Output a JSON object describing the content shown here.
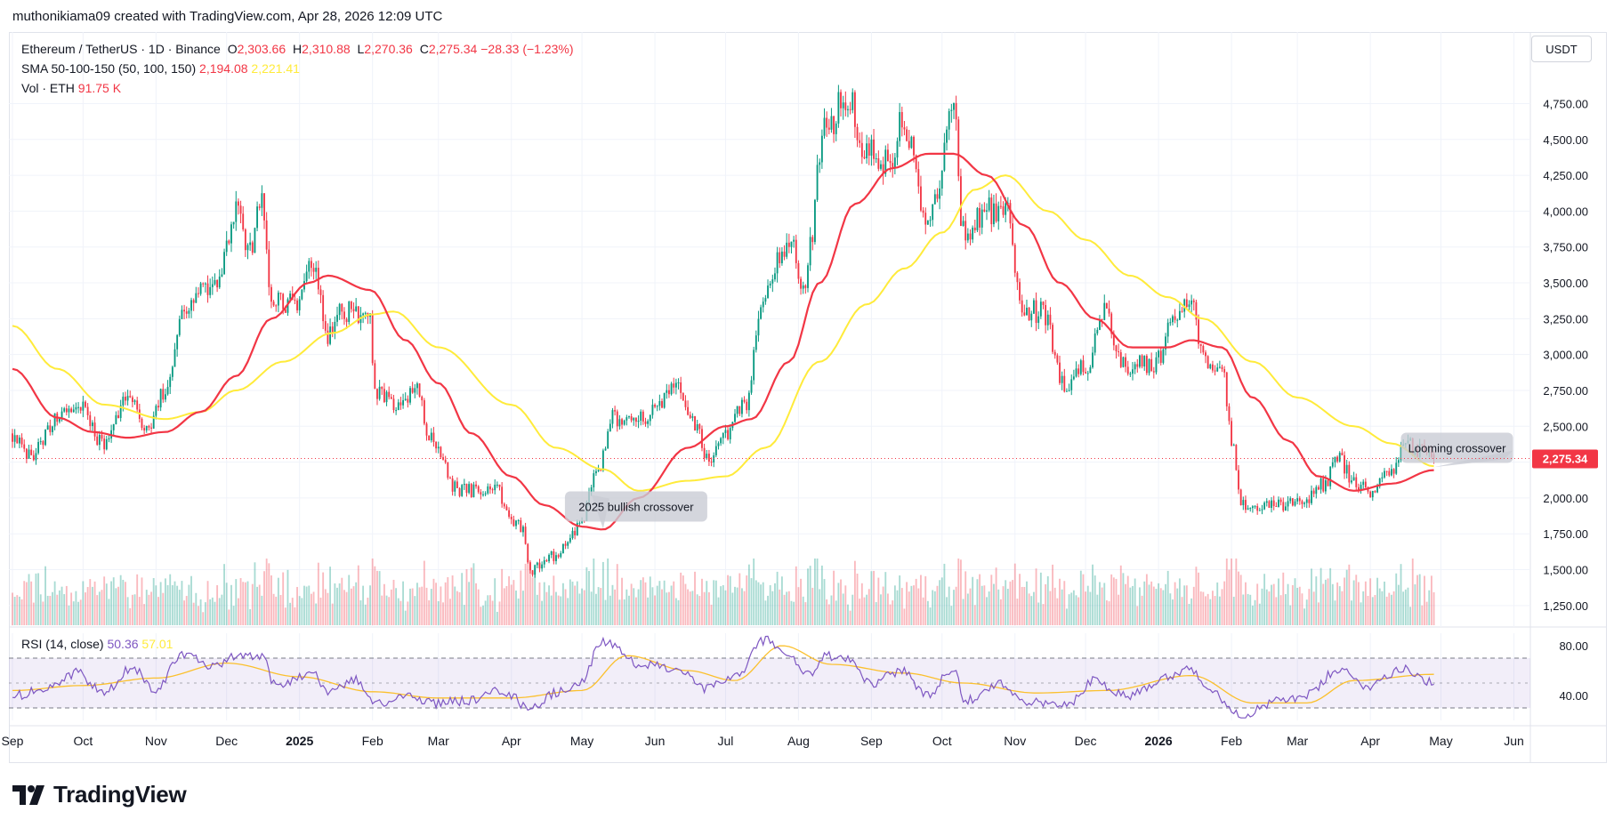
{
  "attribution": "muthonikiama09 created with TradingView.com, Apr 28, 2026 12:09 UTC",
  "legend": {
    "symbol": "Ethereum / TetherUS · 1D · Binance",
    "open_key": "O",
    "open": "2,303.66",
    "high_key": "H",
    "high": "2,310.88",
    "low_key": "L",
    "low": "2,270.36",
    "close_key": "C",
    "close": "2,275.34",
    "change": "−28.33 (−1.23%)",
    "sma_label": "SMA 50-100-150 (50, 100, 150)",
    "sma_fast": "2,194.08",
    "sma_slow": "2,221.41",
    "vol_label": "Vol · ETH",
    "vol_value": "91.75 K"
  },
  "rsi_legend": {
    "label": "RSI (14, close)",
    "rsi": "50.36",
    "ma": "57.01"
  },
  "currency_button": "USDT",
  "brand": "TradingView",
  "price_badge": "2,275.34",
  "colors": {
    "up": "#089981",
    "down": "#f23645",
    "sma_fast": "#f23645",
    "sma_slow": "#ffeb3b",
    "rsi": "#7e57c2",
    "rsi_ma": "#fbc02d",
    "badge": "#f23645"
  },
  "chart_data": {
    "type": "candlestick",
    "price_axis": {
      "ylim": [
        1100,
        5100
      ],
      "ticks": [
        1250,
        1500,
        1750,
        2000,
        2250,
        2500,
        2750,
        3000,
        3250,
        3500,
        3750,
        4000,
        4250,
        4500,
        4750
      ],
      "tick_labels": [
        "1,250.00",
        "1,500.00",
        "1,750.00",
        "2,000.00",
        "2,250.00",
        "2,500.00",
        "2,750.00",
        "3,000.00",
        "3,250.00",
        "3,500.00",
        "3,750.00",
        "4,000.00",
        "4,250.00",
        "4,500.00",
        "4,750.00"
      ]
    },
    "time_axis": {
      "start": "2024-09-01",
      "end": "2026-06-08",
      "labels": [
        {
          "date": "2024-09-01",
          "text": "Sep",
          "bold": false
        },
        {
          "date": "2024-10-01",
          "text": "Oct",
          "bold": false
        },
        {
          "date": "2024-11-01",
          "text": "Nov",
          "bold": false
        },
        {
          "date": "2024-12-01",
          "text": "Dec",
          "bold": false
        },
        {
          "date": "2025-01-01",
          "text": "2025",
          "bold": true
        },
        {
          "date": "2025-02-01",
          "text": "Feb",
          "bold": false
        },
        {
          "date": "2025-03-01",
          "text": "Mar",
          "bold": false
        },
        {
          "date": "2025-04-01",
          "text": "Apr",
          "bold": false
        },
        {
          "date": "2025-05-01",
          "text": "May",
          "bold": false
        },
        {
          "date": "2025-06-01",
          "text": "Jun",
          "bold": false
        },
        {
          "date": "2025-07-01",
          "text": "Jul",
          "bold": false
        },
        {
          "date": "2025-08-01",
          "text": "Aug",
          "bold": false
        },
        {
          "date": "2025-09-01",
          "text": "Sep",
          "bold": false
        },
        {
          "date": "2025-10-01",
          "text": "Oct",
          "bold": false
        },
        {
          "date": "2025-11-01",
          "text": "Nov",
          "bold": false
        },
        {
          "date": "2025-12-01",
          "text": "Dec",
          "bold": false
        },
        {
          "date": "2026-01-01",
          "text": "2026",
          "bold": true
        },
        {
          "date": "2026-02-01",
          "text": "Feb",
          "bold": false
        },
        {
          "date": "2026-03-01",
          "text": "Mar",
          "bold": false
        },
        {
          "date": "2026-04-01",
          "text": "Apr",
          "bold": false
        },
        {
          "date": "2026-05-01",
          "text": "May",
          "bold": false
        },
        {
          "date": "2026-06-01",
          "text": "Jun",
          "bold": false
        }
      ]
    },
    "close_anchors": [
      [
        "2024-09-01",
        2450
      ],
      [
        "2024-09-08",
        2300
      ],
      [
        "2024-09-20",
        2550
      ],
      [
        "2024-09-29",
        2650
      ],
      [
        "2024-10-10",
        2380
      ],
      [
        "2024-10-20",
        2700
      ],
      [
        "2024-10-28",
        2500
      ],
      [
        "2024-11-06",
        2780
      ],
      [
        "2024-11-12",
        3300
      ],
      [
        "2024-11-25",
        3500
      ],
      [
        "2024-12-06",
        4000
      ],
      [
        "2024-12-10",
        3700
      ],
      [
        "2024-12-16",
        4050
      ],
      [
        "2024-12-20",
        3350
      ],
      [
        "2024-12-31",
        3350
      ],
      [
        "2025-01-06",
        3650
      ],
      [
        "2025-01-13",
        3150
      ],
      [
        "2025-01-20",
        3300
      ],
      [
        "2025-01-31",
        3250
      ],
      [
        "2025-02-02",
        2750
      ],
      [
        "2025-02-10",
        2650
      ],
      [
        "2025-02-20",
        2750
      ],
      [
        "2025-02-25",
        2400
      ],
      [
        "2025-03-10",
        2050
      ],
      [
        "2025-03-25",
        2050
      ],
      [
        "2025-04-05",
        1800
      ],
      [
        "2025-04-09",
        1500
      ],
      [
        "2025-04-20",
        1600
      ],
      [
        "2025-04-30",
        1800
      ],
      [
        "2025-05-08",
        2200
      ],
      [
        "2025-05-14",
        2550
      ],
      [
        "2025-05-25",
        2550
      ],
      [
        "2025-06-10",
        2750
      ],
      [
        "2025-06-20",
        2450
      ],
      [
        "2025-06-22",
        2250
      ],
      [
        "2025-07-01",
        2450
      ],
      [
        "2025-07-09",
        2650
      ],
      [
        "2025-07-17",
        3400
      ],
      [
        "2025-07-28",
        3800
      ],
      [
        "2025-08-03",
        3500
      ],
      [
        "2025-08-13",
        4600
      ],
      [
        "2025-08-22",
        4800
      ],
      [
        "2025-08-30",
        4400
      ],
      [
        "2025-09-10",
        4350
      ],
      [
        "2025-09-14",
        4650
      ],
      [
        "2025-09-25",
        3950
      ],
      [
        "2025-10-06",
        4650
      ],
      [
        "2025-10-10",
        3850
      ],
      [
        "2025-10-20",
        4000
      ],
      [
        "2025-10-28",
        4000
      ],
      [
        "2025-11-04",
        3300
      ],
      [
        "2025-11-13",
        3300
      ],
      [
        "2025-11-22",
        2800
      ],
      [
        "2025-12-01",
        2900
      ],
      [
        "2025-12-09",
        3300
      ],
      [
        "2025-12-18",
        2900
      ],
      [
        "2025-12-31",
        2950
      ],
      [
        "2026-01-06",
        3200
      ],
      [
        "2026-01-14",
        3350
      ],
      [
        "2026-01-22",
        2950
      ],
      [
        "2026-01-28",
        2950
      ],
      [
        "2026-02-01",
        2400
      ],
      [
        "2026-02-06",
        1950
      ],
      [
        "2026-02-20",
        1950
      ],
      [
        "2026-03-01",
        1950
      ],
      [
        "2026-03-13",
        2100
      ],
      [
        "2026-03-18",
        2300
      ],
      [
        "2026-03-25",
        2100
      ],
      [
        "2026-03-31",
        2050
      ],
      [
        "2026-04-10",
        2200
      ],
      [
        "2026-04-15",
        2380
      ],
      [
        "2026-04-22",
        2320
      ],
      [
        "2026-04-28",
        2275
      ]
    ],
    "sma_50": [
      [
        "2024-09-01",
        2900
      ],
      [
        "2024-09-20",
        2560
      ],
      [
        "2024-10-05",
        2460
      ],
      [
        "2024-10-20",
        2420
      ],
      [
        "2024-11-05",
        2460
      ],
      [
        "2024-11-20",
        2600
      ],
      [
        "2024-12-05",
        2850
      ],
      [
        "2024-12-20",
        3250
      ],
      [
        "2025-01-05",
        3500
      ],
      [
        "2025-01-13",
        3550
      ],
      [
        "2025-01-31",
        3450
      ],
      [
        "2025-02-15",
        3100
      ],
      [
        "2025-03-01",
        2800
      ],
      [
        "2025-03-15",
        2450
      ],
      [
        "2025-04-01",
        2150
      ],
      [
        "2025-04-15",
        1950
      ],
      [
        "2025-05-01",
        1800
      ],
      [
        "2025-05-10",
        1780
      ],
      [
        "2025-05-25",
        2000
      ],
      [
        "2025-06-15",
        2350
      ],
      [
        "2025-07-01",
        2500
      ],
      [
        "2025-07-12",
        2550
      ],
      [
        "2025-07-28",
        2950
      ],
      [
        "2025-08-10",
        3500
      ],
      [
        "2025-08-25",
        4050
      ],
      [
        "2025-09-10",
        4300
      ],
      [
        "2025-09-25",
        4400
      ],
      [
        "2025-10-06",
        4400
      ],
      [
        "2025-10-20",
        4250
      ],
      [
        "2025-11-05",
        3900
      ],
      [
        "2025-11-20",
        3500
      ],
      [
        "2025-12-05",
        3250
      ],
      [
        "2025-12-20",
        3050
      ],
      [
        "2026-01-05",
        3050
      ],
      [
        "2026-01-15",
        3100
      ],
      [
        "2026-01-28",
        3050
      ],
      [
        "2026-02-10",
        2700
      ],
      [
        "2026-02-25",
        2400
      ],
      [
        "2026-03-10",
        2150
      ],
      [
        "2026-03-25",
        2050
      ],
      [
        "2026-04-10",
        2100
      ],
      [
        "2026-04-28",
        2194
      ]
    ],
    "sma_150": [
      [
        "2024-09-01",
        3200
      ],
      [
        "2024-09-20",
        2900
      ],
      [
        "2024-10-10",
        2650
      ],
      [
        "2024-11-05",
        2550
      ],
      [
        "2024-11-20",
        2600
      ],
      [
        "2024-12-05",
        2750
      ],
      [
        "2024-12-25",
        2950
      ],
      [
        "2025-01-15",
        3150
      ],
      [
        "2025-02-01",
        3280
      ],
      [
        "2025-02-10",
        3300
      ],
      [
        "2025-03-01",
        3050
      ],
      [
        "2025-04-01",
        2650
      ],
      [
        "2025-04-20",
        2350
      ],
      [
        "2025-05-10",
        2200
      ],
      [
        "2025-05-25",
        2050
      ],
      [
        "2025-06-15",
        2120
      ],
      [
        "2025-07-01",
        2150
      ],
      [
        "2025-07-18",
        2350
      ],
      [
        "2025-08-10",
        2950
      ],
      [
        "2025-08-30",
        3350
      ],
      [
        "2025-09-15",
        3600
      ],
      [
        "2025-10-01",
        3850
      ],
      [
        "2025-10-15",
        4150
      ],
      [
        "2025-10-28",
        4250
      ],
      [
        "2025-11-15",
        4000
      ],
      [
        "2025-12-01",
        3800
      ],
      [
        "2025-12-20",
        3550
      ],
      [
        "2026-01-05",
        3400
      ],
      [
        "2026-01-20",
        3250
      ],
      [
        "2026-02-10",
        2950
      ],
      [
        "2026-03-01",
        2700
      ],
      [
        "2026-03-25",
        2500
      ],
      [
        "2026-04-10",
        2380
      ],
      [
        "2026-04-28",
        2221
      ]
    ],
    "rsi_axis": {
      "ylim": [
        20,
        90
      ],
      "ticks": [
        40,
        80
      ],
      "tick_labels": [
        "40.00",
        "80.00"
      ],
      "band": [
        30,
        70
      ],
      "mid": 50
    },
    "rsi_anchors": [
      [
        "2024-09-01",
        40
      ],
      [
        "2024-09-15",
        45
      ],
      [
        "2024-09-28",
        58
      ],
      [
        "2024-10-10",
        42
      ],
      [
        "2024-10-22",
        62
      ],
      [
        "2024-11-01",
        45
      ],
      [
        "2024-11-12",
        74
      ],
      [
        "2024-11-25",
        62
      ],
      [
        "2024-12-06",
        72
      ],
      [
        "2024-12-16",
        70
      ],
      [
        "2024-12-22",
        48
      ],
      [
        "2025-01-06",
        58
      ],
      [
        "2025-01-13",
        44
      ],
      [
        "2025-01-25",
        52
      ],
      [
        "2025-02-03",
        33
      ],
      [
        "2025-02-15",
        40
      ],
      [
        "2025-02-28",
        34
      ],
      [
        "2025-03-15",
        36
      ],
      [
        "2025-03-28",
        44
      ],
      [
        "2025-04-09",
        30
      ],
      [
        "2025-04-20",
        42
      ],
      [
        "2025-04-30",
        50
      ],
      [
        "2025-05-10",
        84
      ],
      [
        "2025-05-25",
        65
      ],
      [
        "2025-06-10",
        62
      ],
      [
        "2025-06-22",
        45
      ],
      [
        "2025-07-05",
        55
      ],
      [
        "2025-07-18",
        85
      ],
      [
        "2025-07-28",
        72
      ],
      [
        "2025-08-05",
        56
      ],
      [
        "2025-08-13",
        72
      ],
      [
        "2025-08-22",
        68
      ],
      [
        "2025-09-01",
        50
      ],
      [
        "2025-09-14",
        60
      ],
      [
        "2025-09-25",
        40
      ],
      [
        "2025-10-06",
        62
      ],
      [
        "2025-10-11",
        36
      ],
      [
        "2025-10-25",
        50
      ],
      [
        "2025-11-04",
        35
      ],
      [
        "2025-11-22",
        32
      ],
      [
        "2025-12-05",
        52
      ],
      [
        "2025-12-18",
        40
      ],
      [
        "2026-01-06",
        56
      ],
      [
        "2026-01-14",
        63
      ],
      [
        "2026-01-25",
        40
      ],
      [
        "2026-02-06",
        24
      ],
      [
        "2026-02-20",
        35
      ],
      [
        "2026-03-05",
        40
      ],
      [
        "2026-03-18",
        60
      ],
      [
        "2026-03-31",
        48
      ],
      [
        "2026-04-15",
        62
      ],
      [
        "2026-04-28",
        50
      ]
    ],
    "rsi_ma_anchors": [
      [
        "2024-09-01",
        44
      ],
      [
        "2024-10-01",
        48
      ],
      [
        "2024-11-01",
        54
      ],
      [
        "2024-12-01",
        66
      ],
      [
        "2025-01-01",
        55
      ],
      [
        "2025-02-01",
        43
      ],
      [
        "2025-03-01",
        38
      ],
      [
        "2025-04-01",
        38
      ],
      [
        "2025-05-01",
        44
      ],
      [
        "2025-05-20",
        72
      ],
      [
        "2025-06-15",
        60
      ],
      [
        "2025-07-05",
        52
      ],
      [
        "2025-07-25",
        80
      ],
      [
        "2025-08-15",
        65
      ],
      [
        "2025-09-15",
        58
      ],
      [
        "2025-10-10",
        50
      ],
      [
        "2025-11-10",
        42
      ],
      [
        "2025-12-10",
        44
      ],
      [
        "2026-01-15",
        56
      ],
      [
        "2026-02-10",
        34
      ],
      [
        "2026-03-05",
        34
      ],
      [
        "2026-03-25",
        52
      ],
      [
        "2026-04-28",
        57
      ]
    ],
    "annotations": [
      {
        "text": "2025 bullish crossover",
        "date": "2025-05-24",
        "price": 1940,
        "target_date": "2025-05-10",
        "target_price": 1785
      },
      {
        "text": "Looming crossover",
        "date": "2026-04-14",
        "price": 2350,
        "target_date": "2026-04-28",
        "target_price": 2215
      }
    ],
    "last_close": 2275.34
  }
}
